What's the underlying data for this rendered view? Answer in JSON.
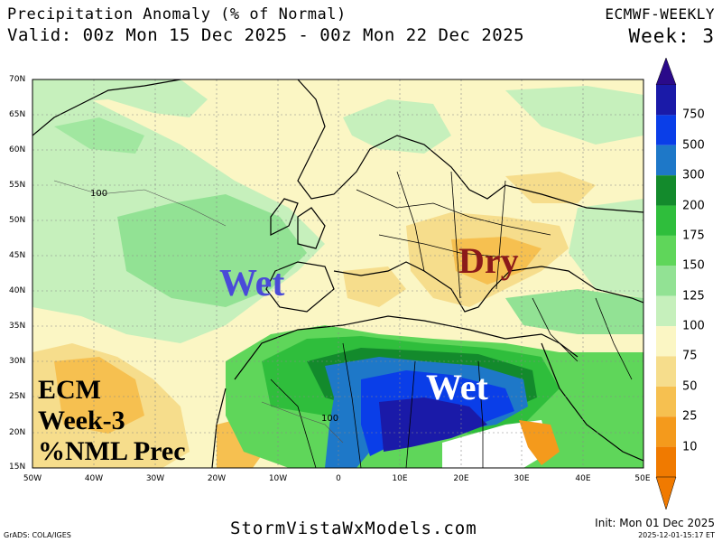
{
  "header": {
    "title": "Precipitation Anomaly (% of Normal)",
    "valid": "Valid: 00z Mon 15 Dec 2025 - 00z Mon 22 Dec 2025",
    "model": "ECMWF-WEEKLY",
    "week": "Week: 3"
  },
  "map": {
    "lat_labels": [
      "70N",
      "65N",
      "60N",
      "55N",
      "50N",
      "45N",
      "40N",
      "35N",
      "30N",
      "25N",
      "20N",
      "15N"
    ],
    "lon_labels": [
      "50W",
      "40W",
      "30W",
      "20W",
      "10W",
      "0",
      "10E",
      "20E",
      "30E",
      "40E",
      "50E"
    ],
    "contour_labels": [
      "100",
      "100"
    ],
    "annotations": {
      "wet_left": "Wet",
      "dry": "Dry",
      "wet_right": "Wet"
    },
    "corner_note": [
      "ECM",
      "Week-3",
      "%NML Prec"
    ]
  },
  "colorbar": {
    "labels": [
      "750",
      "500",
      "300",
      "200",
      "175",
      "150",
      "125",
      "100",
      "75",
      "50",
      "25",
      "10"
    ],
    "colors": [
      "#1a1aa8",
      "#0a3ee8",
      "#1e78c8",
      "#138a2c",
      "#2fbe3c",
      "#5fd65a",
      "#92e294",
      "#c6f0bc",
      "#fbf6c4",
      "#f6dd8c",
      "#f6c050",
      "#f49a1c",
      "#f07a00"
    ],
    "top_arrow_color": "#2a0a8a",
    "bottom_arrow_color": "#f07a00"
  },
  "footer": {
    "site": "StormVistaWxModels.com",
    "grads": "GrADS: COLA/IGES",
    "init": "Init: Mon 01 Dec 2025",
    "stamp": "2025-12-01-15:17 ET"
  }
}
